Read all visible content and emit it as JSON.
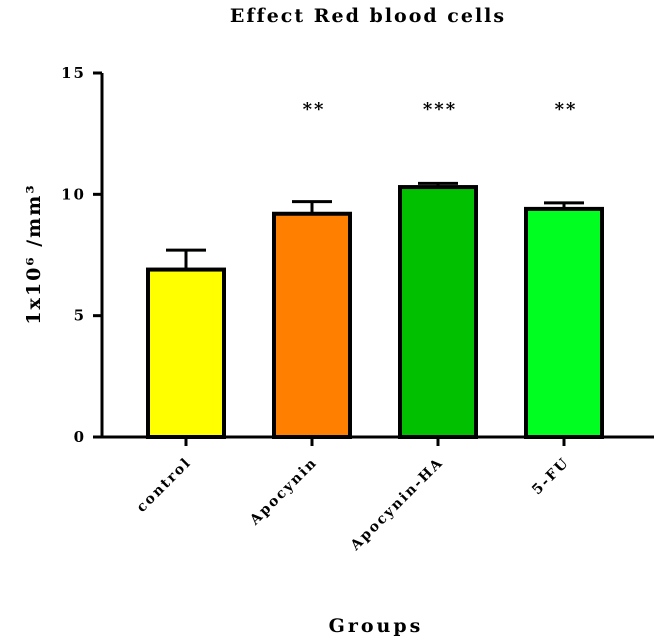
{
  "chart_data": {
    "type": "bar",
    "title": "Effect Red blood cells",
    "xlabel": "Groups",
    "ylabel": "1x10⁶ /mm³",
    "ylim": [
      0,
      15
    ],
    "yticks": [
      0,
      5,
      10,
      15
    ],
    "categories": [
      "control",
      "Apocynin",
      "Apocynin-HA",
      "5-FU"
    ],
    "values": [
      6.9,
      9.2,
      10.3,
      9.4
    ],
    "errors": [
      0.8,
      0.5,
      0.15,
      0.25
    ],
    "significance": [
      "",
      "**",
      "***",
      "**"
    ],
    "colors": [
      "#ffff00",
      "#ff8000",
      "#00c000",
      "#00ff20"
    ],
    "grid": false
  }
}
